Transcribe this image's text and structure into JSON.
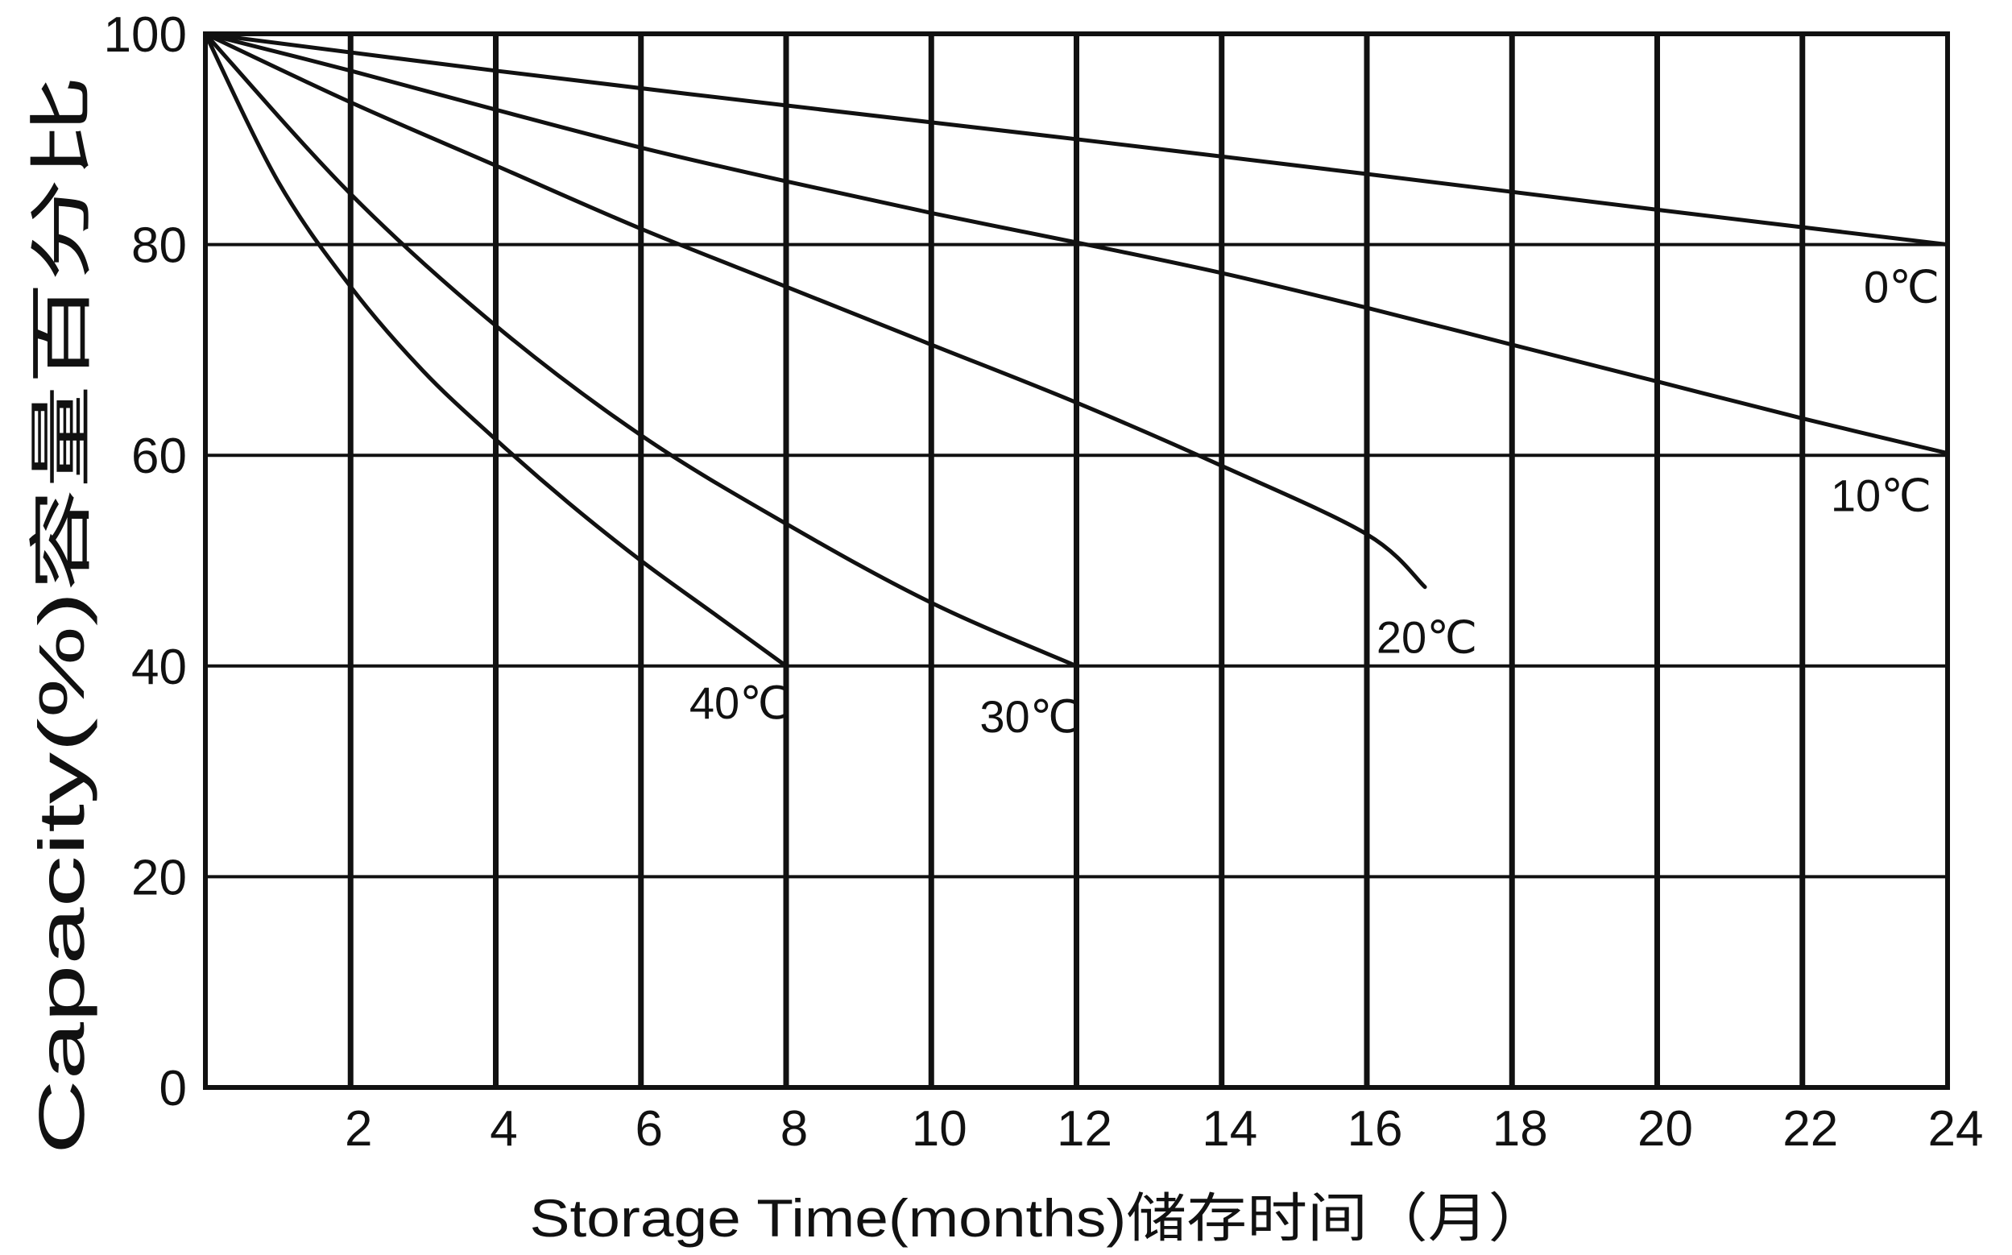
{
  "chart_data": {
    "type": "line",
    "title": "",
    "xlabel": "Storage Time(months)储存时间（月）",
    "ylabel": "Capacity(%)容量百分比",
    "xlim": [
      0,
      24
    ],
    "ylim": [
      0,
      100
    ],
    "x_ticks": [
      2,
      4,
      6,
      8,
      10,
      12,
      14,
      16,
      18,
      20,
      22,
      24
    ],
    "y_ticks": [
      0,
      20,
      40,
      60,
      80,
      100
    ],
    "grid": true,
    "legend": "none (series labelled at line ends)",
    "line_color": "#111111",
    "series": [
      {
        "name": "0℃",
        "x": [
          0,
          4,
          8,
          12,
          16,
          20,
          24
        ],
        "y": [
          100,
          96.5,
          93.2,
          90,
          86.7,
          83.3,
          80
        ]
      },
      {
        "name": "10℃",
        "x": [
          0,
          2,
          4,
          6,
          8,
          10,
          12,
          14,
          16,
          18,
          20,
          22,
          24
        ],
        "y": [
          100,
          96.5,
          92.8,
          89.2,
          86,
          83,
          80.2,
          77.3,
          74,
          70.5,
          67,
          63.5,
          60.2
        ]
      },
      {
        "name": "20℃",
        "x": [
          0,
          2,
          4,
          6,
          8,
          10,
          12,
          14,
          16,
          16.8
        ],
        "y": [
          100,
          93.5,
          87.5,
          81.5,
          76,
          70.5,
          65,
          59,
          52.5,
          47.5
        ]
      },
      {
        "name": "30℃",
        "x": [
          0,
          2,
          4,
          6,
          8,
          10,
          12
        ],
        "y": [
          100,
          84.8,
          72.3,
          61.9,
          53.5,
          46,
          40
        ]
      },
      {
        "name": "40℃",
        "x": [
          0,
          1,
          2,
          3,
          4,
          5,
          6,
          7,
          8
        ],
        "y": [
          100,
          86,
          76,
          68,
          61.5,
          55.5,
          50,
          45,
          40
        ]
      }
    ]
  }
}
